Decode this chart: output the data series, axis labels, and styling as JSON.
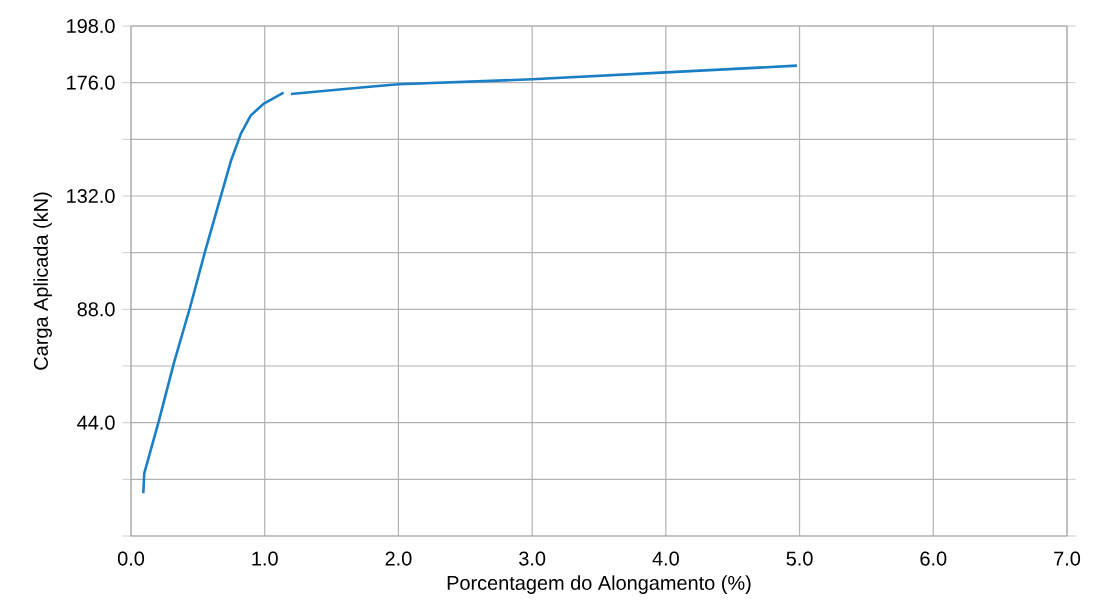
{
  "chart_data": {
    "type": "line",
    "xlabel": "Porcentagem do Alongamento (%)",
    "ylabel": "Carga Aplicada (kN)",
    "x": [
      0.092,
      0.099,
      0.21,
      0.32,
      0.443,
      0.553,
      0.663,
      0.749,
      0.822,
      0.896,
      0.994,
      1.141,
      1.17,
      1.196,
      1.72,
      2.0,
      3.0,
      4.0,
      4.98
    ],
    "series": [
      {
        "color": "#1a7fc4",
        "values": [
          16.6,
          24.3,
          45,
          67,
          89,
          110.3,
          130.3,
          145.9,
          156.2,
          163.3,
          167.9,
          172.1,
          null,
          171.6,
          174.1,
          175.4,
          177.3,
          180.0,
          182.6
        ]
      }
    ],
    "xlim": [
      0,
      7
    ],
    "ylim": [
      0,
      198
    ],
    "xticks": [
      {
        "value": 0,
        "label": "0.0"
      },
      {
        "value": 1,
        "label": "1.0"
      },
      {
        "value": 2,
        "label": "2.0"
      },
      {
        "value": 3,
        "label": "3.0"
      },
      {
        "value": 4,
        "label": "4.0"
      },
      {
        "value": 5,
        "label": "5.0"
      },
      {
        "value": 6,
        "label": "6.0"
      },
      {
        "value": 7,
        "label": "7.0"
      }
    ],
    "yticks": [
      {
        "value": 0,
        "label": null
      },
      {
        "value": 22,
        "label": null
      },
      {
        "value": 44,
        "label": "44.0"
      },
      {
        "value": 66,
        "label": null
      },
      {
        "value": 88,
        "label": "88.0"
      },
      {
        "value": 110,
        "label": null
      },
      {
        "value": 132,
        "label": "132.0"
      },
      {
        "value": 154,
        "label": null
      },
      {
        "value": 176,
        "label": "176.0"
      },
      {
        "value": 198,
        "label": "198.0"
      }
    ],
    "grid": true,
    "marker": "none",
    "line_style": "solid"
  }
}
